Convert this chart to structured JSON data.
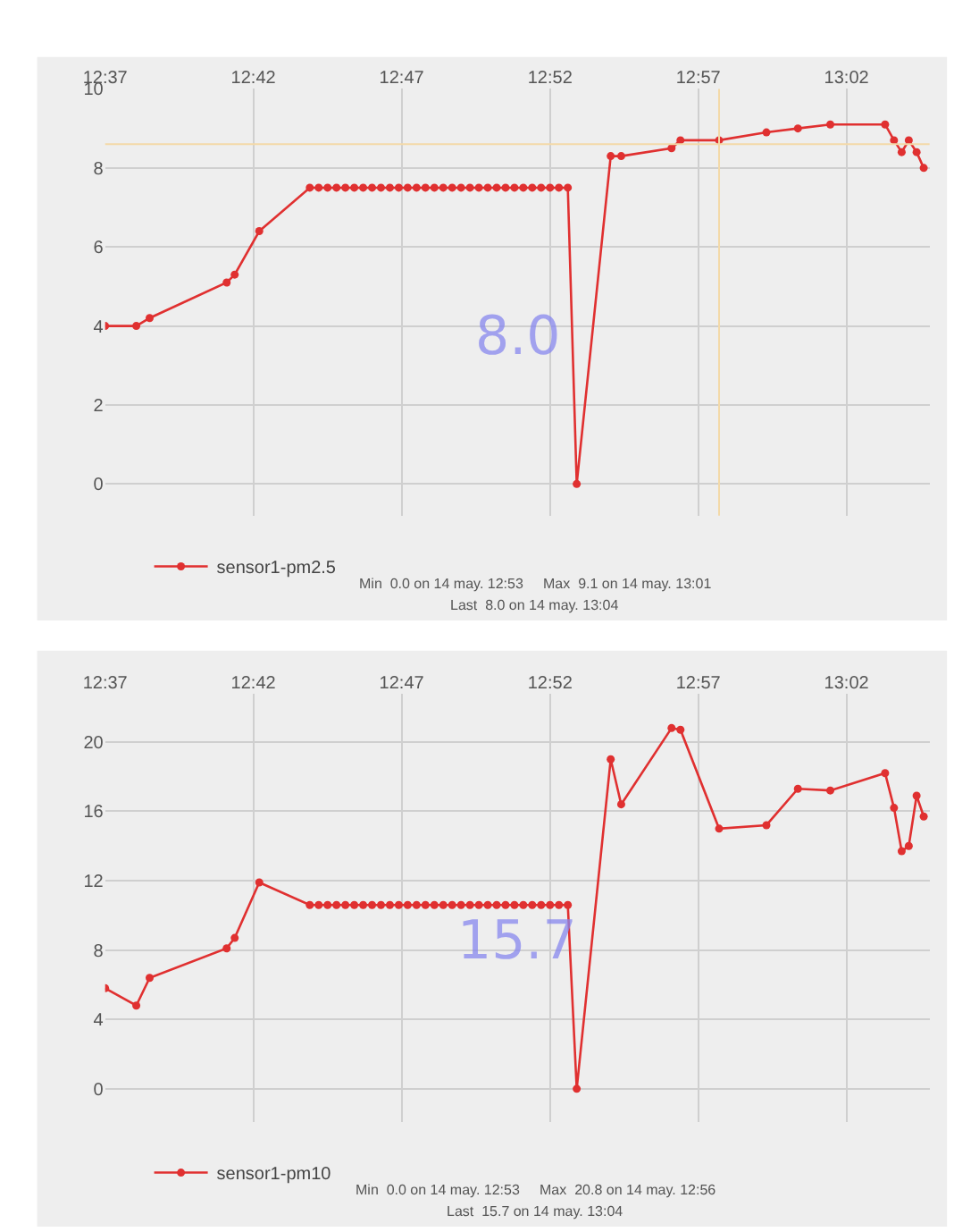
{
  "chart_data": [
    {
      "type": "line",
      "x": [
        12.6167,
        12.6342,
        12.6417,
        12.685,
        12.6895,
        12.7033,
        12.7317,
        12.7367,
        12.7417,
        12.7467,
        12.7517,
        12.7567,
        12.7617,
        12.7667,
        12.7717,
        12.7767,
        12.7817,
        12.7867,
        12.7917,
        12.7967,
        12.8017,
        12.8067,
        12.8117,
        12.8167,
        12.8217,
        12.8267,
        12.8317,
        12.8367,
        12.8417,
        12.8467,
        12.8517,
        12.8567,
        12.8617,
        12.8667,
        12.8717,
        12.8767,
        12.8817,
        12.9008,
        12.9067,
        12.935,
        12.94,
        12.9617,
        12.9883,
        13.006,
        13.0242,
        13.055,
        13.06,
        13.0643,
        13.0683,
        13.0727,
        13.0767
      ],
      "series": [
        {
          "name": "sensor1-pm2.5",
          "color": "#e03030",
          "values": [
            4.0,
            4.0,
            4.2,
            5.1,
            5.3,
            6.4,
            7.5,
            7.5,
            7.5,
            7.5,
            7.5,
            7.5,
            7.5,
            7.5,
            7.5,
            7.5,
            7.5,
            7.5,
            7.5,
            7.5,
            7.5,
            7.5,
            7.5,
            7.5,
            7.5,
            7.5,
            7.5,
            7.5,
            7.5,
            7.5,
            7.5,
            7.5,
            7.5,
            7.5,
            7.5,
            7.5,
            0,
            8.3,
            8.3,
            8.5,
            8.7,
            8.7,
            8.9,
            9.0,
            9.1,
            9.1,
            8.7,
            8.4,
            8.7,
            8.4,
            8.0
          ]
        }
      ],
      "xlim": [
        12.6167,
        13.08
      ],
      "ylim": [
        -0.8,
        10
      ],
      "xticks": [
        {
          "value": 12.6167,
          "label": "12:37"
        },
        {
          "value": 12.7,
          "label": "12:42"
        },
        {
          "value": 12.7833,
          "label": "12:47"
        },
        {
          "value": 12.8667,
          "label": "12:52"
        },
        {
          "value": 12.95,
          "label": "12:57"
        },
        {
          "value": 13.0333,
          "label": "13:02"
        }
      ],
      "yticks": [
        0,
        2,
        4,
        6,
        8,
        10
      ],
      "ref_lines": [
        {
          "axis": "y",
          "value": 8.6,
          "label": null,
          "color": "#f3d9a8"
        },
        {
          "axis": "x",
          "value": 12.9617,
          "label": null,
          "color": "#f3d9a8"
        }
      ],
      "annotations": [
        "8.0",
        "Min  0.0 on 14 may. 12:53     Max  9.1 on 14 may. 13:01",
        "Last  8.0 on 14 may. 13:04"
      ],
      "grid": true,
      "legend": "bottom left",
      "marker": "circle",
      "line_style": "solid"
    },
    {
      "type": "line",
      "x": [
        12.6167,
        12.6342,
        12.6417,
        12.685,
        12.6895,
        12.7033,
        12.7317,
        12.7367,
        12.7417,
        12.7467,
        12.7517,
        12.7567,
        12.7617,
        12.7667,
        12.7717,
        12.7767,
        12.7817,
        12.7867,
        12.7917,
        12.7967,
        12.8017,
        12.8067,
        12.8117,
        12.8167,
        12.8217,
        12.8267,
        12.8317,
        12.8367,
        12.8417,
        12.8467,
        12.8517,
        12.8567,
        12.8617,
        12.8667,
        12.8717,
        12.8767,
        12.8817,
        12.9008,
        12.9067,
        12.935,
        12.94,
        12.9617,
        12.9883,
        13.006,
        13.0242,
        13.055,
        13.06,
        13.0643,
        13.0683,
        13.0727,
        13.0767
      ],
      "series": [
        {
          "name": "sensor1-pm10",
          "color": "#e03030",
          "values": [
            5.8,
            4.8,
            6.4,
            8.1,
            8.7,
            11.9,
            10.6,
            10.6,
            10.6,
            10.6,
            10.6,
            10.6,
            10.6,
            10.6,
            10.6,
            10.6,
            10.6,
            10.6,
            10.6,
            10.6,
            10.6,
            10.6,
            10.6,
            10.6,
            10.6,
            10.6,
            10.6,
            10.6,
            10.6,
            10.6,
            10.6,
            10.6,
            10.6,
            10.6,
            10.6,
            10.6,
            0,
            19.0,
            16.4,
            20.8,
            20.7,
            15.0,
            15.2,
            17.3,
            17.2,
            18.2,
            16.2,
            13.7,
            14.0,
            16.9,
            15.7
          ]
        }
      ],
      "xlim": [
        12.6167,
        13.08
      ],
      "ylim": [
        -1.9,
        22.8
      ],
      "xticks": [
        {
          "value": 12.6167,
          "label": "12:37"
        },
        {
          "value": 12.7,
          "label": "12:42"
        },
        {
          "value": 12.7833,
          "label": "12:47"
        },
        {
          "value": 12.8667,
          "label": "12:52"
        },
        {
          "value": 12.95,
          "label": "12:57"
        },
        {
          "value": 13.0333,
          "label": "13:02"
        }
      ],
      "yticks": [
        0,
        4,
        8,
        12,
        16,
        20
      ],
      "annotations": [
        "15.7",
        "Min  0.0 on 14 may. 12:53     Max  20.8 on 14 may. 12:56",
        "Last  15.7 on 14 may. 13:04"
      ],
      "grid": true,
      "legend": "bottom left",
      "marker": "circle",
      "line_style": "solid"
    }
  ]
}
